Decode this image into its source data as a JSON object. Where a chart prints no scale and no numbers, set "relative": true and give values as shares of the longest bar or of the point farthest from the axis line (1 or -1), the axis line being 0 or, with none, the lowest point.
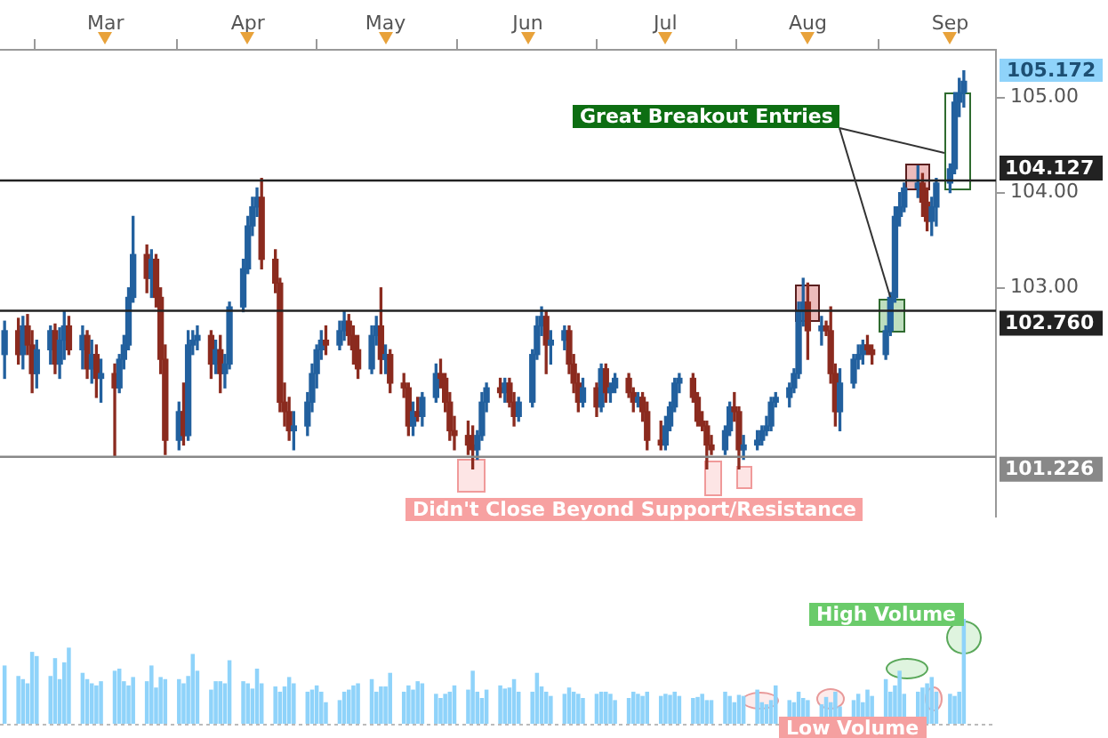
{
  "chart_data": [
    {
      "type": "candlestick",
      "x": [
        "--02-07",
        "--02-10",
        "--02-11",
        "--02-12",
        "--02-13",
        "--02-14",
        "--02-17",
        "--02-18",
        "--02-19",
        "--02-20",
        "--02-21",
        "--02-24",
        "--02-25",
        "--02-26",
        "--02-27",
        "--02-28",
        "--03-03",
        "--03-04",
        "--03-05",
        "--03-06",
        "--03-07",
        "--03-10",
        "--03-11",
        "--03-12",
        "--03-13",
        "--03-14",
        "--03-17",
        "--03-18",
        "--03-19",
        "--03-20",
        "--03-21",
        "--03-24",
        "--03-25",
        "--03-26",
        "--03-27",
        "--03-28",
        "--03-31",
        "--04-01",
        "--04-02",
        "--04-03",
        "--04-04",
        "--04-07",
        "--04-08",
        "--04-09",
        "--04-10",
        "--04-11",
        "--04-14",
        "--04-15",
        "--04-16",
        "--04-17",
        "--04-18",
        "--04-21",
        "--04-22",
        "--04-23",
        "--04-24",
        "--04-25",
        "--04-28",
        "--04-29",
        "--04-30",
        "--05-01",
        "--05-02",
        "--05-05",
        "--05-06",
        "--05-07",
        "--05-08",
        "--05-09",
        "--05-12",
        "--05-13",
        "--05-14",
        "--05-15",
        "--05-16",
        "--05-19",
        "--05-20",
        "--05-21",
        "--05-22",
        "--05-23",
        "--05-26",
        "--05-27",
        "--05-28",
        "--05-29",
        "--05-30",
        "--06-02",
        "--06-03",
        "--06-04",
        "--06-05",
        "--06-06",
        "--06-09",
        "--06-10",
        "--06-11",
        "--06-12",
        "--06-13",
        "--06-16",
        "--06-17",
        "--06-18",
        "--06-19",
        "--06-20",
        "--06-23",
        "--06-24",
        "--06-25",
        "--06-26",
        "--06-27",
        "--06-30",
        "--07-01",
        "--07-02",
        "--07-03",
        "--07-04",
        "--07-07",
        "--07-08",
        "--07-09",
        "--07-10",
        "--07-11",
        "--07-14",
        "--07-15",
        "--07-16",
        "--07-17",
        "--07-18",
        "--07-21",
        "--07-22",
        "--07-23",
        "--07-24",
        "--07-25",
        "--07-28",
        "--07-29",
        "--07-30",
        "--07-31",
        "--08-01",
        "--08-04",
        "--08-05",
        "--08-06",
        "--08-07",
        "--08-08",
        "--08-11",
        "--08-12",
        "--08-13",
        "--08-14",
        "--08-15",
        "--08-18",
        "--08-19",
        "--08-20",
        "--08-21",
        "--08-22",
        "--08-25",
        "--08-26",
        "--08-27",
        "--08-28",
        "--08-29",
        "--09-01",
        "--09-02",
        "--09-03",
        "--09-04"
      ],
      "ohlc": [
        [
          102.3,
          102.65,
          102.05,
          102.55
        ],
        [
          102.55,
          102.68,
          102.2,
          102.3
        ],
        [
          102.3,
          102.7,
          102.15,
          102.6
        ],
        [
          102.6,
          102.72,
          102.3,
          102.4
        ],
        [
          102.4,
          102.55,
          101.9,
          102.1
        ],
        [
          102.1,
          102.45,
          101.95,
          102.35
        ],
        [
          102.35,
          102.6,
          102.2,
          102.55
        ],
        [
          102.55,
          102.62,
          102.1,
          102.2
        ],
        [
          102.2,
          102.58,
          102.05,
          102.45
        ],
        [
          102.45,
          102.75,
          102.25,
          102.6
        ],
        [
          102.6,
          102.7,
          102.3,
          102.35
        ],
        [
          102.35,
          102.6,
          102.15,
          102.5
        ],
        [
          102.5,
          102.55,
          102.05,
          102.15
        ],
        [
          102.15,
          102.45,
          102.0,
          102.3
        ],
        [
          102.3,
          102.4,
          101.85,
          102.05
        ],
        [
          102.05,
          102.25,
          101.8,
          102.1
        ],
        [
          102.1,
          102.2,
          101.22,
          101.95
        ],
        [
          101.95,
          102.3,
          101.9,
          102.25
        ],
        [
          102.25,
          102.5,
          102.15,
          102.4
        ],
        [
          102.4,
          103.0,
          102.35,
          102.9
        ],
        [
          102.9,
          103.75,
          102.85,
          103.35
        ],
        [
          103.35,
          103.45,
          102.95,
          103.1
        ],
        [
          103.1,
          103.4,
          102.9,
          103.3
        ],
        [
          103.3,
          103.35,
          102.8,
          102.9
        ],
        [
          102.9,
          103.0,
          102.1,
          102.25
        ],
        [
          102.25,
          102.4,
          101.25,
          101.4
        ],
        [
          101.4,
          101.8,
          101.3,
          101.7
        ],
        [
          101.7,
          102.0,
          101.35,
          101.45
        ],
        [
          101.45,
          102.55,
          101.4,
          102.4
        ],
        [
          102.4,
          102.55,
          102.3,
          102.45
        ],
        [
          102.45,
          102.6,
          102.35,
          102.5
        ],
        [
          102.5,
          102.55,
          102.05,
          102.2
        ],
        [
          102.2,
          102.45,
          102.1,
          102.35
        ],
        [
          102.35,
          102.5,
          101.9,
          102.1
        ],
        [
          102.1,
          102.3,
          101.95,
          102.2
        ],
        [
          102.2,
          102.85,
          102.15,
          102.8
        ],
        [
          102.8,
          103.3,
          102.75,
          103.2
        ],
        [
          103.2,
          103.75,
          103.15,
          103.65
        ],
        [
          103.65,
          103.95,
          103.55,
          103.85
        ],
        [
          103.85,
          104.05,
          103.75,
          103.95
        ],
        [
          103.95,
          104.15,
          103.2,
          103.3
        ],
        [
          103.3,
          103.4,
          102.95,
          103.05
        ],
        [
          103.05,
          103.1,
          101.7,
          101.8
        ],
        [
          101.8,
          102.0,
          101.55,
          101.7
        ],
        [
          101.7,
          101.85,
          101.4,
          101.5
        ],
        [
          101.5,
          101.7,
          101.3,
          101.55
        ],
        [
          101.55,
          101.9,
          101.45,
          101.8
        ],
        [
          101.8,
          102.2,
          101.7,
          102.1
        ],
        [
          102.1,
          102.4,
          101.95,
          102.35
        ],
        [
          102.35,
          102.55,
          102.25,
          102.45
        ],
        [
          102.45,
          102.6,
          102.3,
          102.4
        ],
        [
          102.4,
          102.65,
          102.35,
          102.55
        ],
        [
          102.55,
          102.75,
          102.45,
          102.65
        ],
        [
          102.65,
          102.72,
          102.4,
          102.5
        ],
        [
          102.5,
          102.6,
          102.2,
          102.35
        ],
        [
          102.35,
          102.5,
          102.05,
          102.15
        ],
        [
          102.15,
          102.6,
          102.1,
          102.5
        ],
        [
          102.5,
          102.7,
          102.4,
          102.6
        ],
        [
          102.6,
          103.0,
          102.1,
          102.25
        ],
        [
          102.25,
          102.4,
          102.1,
          102.3
        ],
        [
          102.3,
          102.35,
          101.9,
          102.0
        ],
        [
          102.0,
          102.1,
          101.85,
          101.95
        ],
        [
          101.95,
          102.0,
          101.45,
          101.55
        ],
        [
          101.55,
          101.8,
          101.45,
          101.7
        ],
        [
          101.7,
          101.85,
          101.6,
          101.65
        ],
        [
          101.65,
          101.9,
          101.55,
          101.85
        ],
        [
          101.85,
          102.2,
          101.8,
          102.1
        ],
        [
          102.1,
          102.25,
          101.95,
          102.05
        ],
        [
          102.05,
          102.1,
          101.7,
          101.8
        ],
        [
          101.8,
          101.9,
          101.4,
          101.5
        ],
        [
          101.5,
          101.65,
          101.3,
          101.45
        ],
        [
          101.45,
          101.6,
          101.25,
          101.35
        ],
        [
          101.35,
          101.55,
          101.1,
          101.3
        ],
        [
          101.3,
          101.5,
          101.2,
          101.45
        ],
        [
          101.45,
          101.9,
          101.4,
          101.8
        ],
        [
          101.8,
          102.0,
          101.7,
          101.95
        ],
        [
          101.95,
          102.05,
          101.85,
          101.9
        ],
        [
          101.9,
          102.05,
          101.8,
          102.0
        ],
        [
          102.0,
          102.05,
          101.75,
          101.8
        ],
        [
          101.8,
          101.9,
          101.55,
          101.65
        ],
        [
          101.65,
          101.85,
          101.6,
          101.8
        ],
        [
          101.8,
          102.35,
          101.75,
          102.3
        ],
        [
          102.3,
          102.7,
          102.25,
          102.6
        ],
        [
          102.6,
          102.8,
          102.5,
          102.7
        ],
        [
          102.7,
          102.75,
          102.1,
          102.4
        ],
        [
          102.4,
          102.55,
          102.2,
          102.45
        ],
        [
          102.45,
          102.6,
          102.35,
          102.55
        ],
        [
          102.55,
          102.6,
          102.1,
          102.2
        ],
        [
          102.2,
          102.3,
          101.9,
          102.0
        ],
        [
          102.0,
          102.1,
          101.7,
          101.8
        ],
        [
          101.8,
          102.05,
          101.75,
          101.95
        ],
        [
          101.95,
          102.0,
          101.65,
          101.75
        ],
        [
          101.75,
          102.2,
          101.7,
          102.15
        ],
        [
          102.15,
          102.2,
          101.8,
          101.9
        ],
        [
          101.9,
          102.0,
          101.8,
          101.95
        ],
        [
          101.95,
          102.1,
          101.9,
          102.05
        ],
        [
          102.05,
          102.1,
          101.85,
          101.9
        ],
        [
          101.9,
          101.95,
          101.7,
          101.8
        ],
        [
          101.8,
          101.9,
          101.75,
          101.85
        ],
        [
          101.85,
          101.9,
          101.6,
          101.7
        ],
        [
          101.7,
          101.8,
          101.3,
          101.4
        ],
        [
          101.4,
          101.6,
          101.3,
          101.35
        ],
        [
          101.35,
          101.65,
          101.3,
          101.55
        ],
        [
          101.55,
          101.8,
          101.5,
          101.75
        ],
        [
          101.75,
          102.05,
          101.7,
          102.0
        ],
        [
          102.0,
          102.1,
          101.9,
          102.05
        ],
        [
          102.05,
          102.1,
          101.8,
          101.85
        ],
        [
          101.85,
          101.9,
          101.55,
          101.6
        ],
        [
          101.6,
          101.7,
          101.5,
          101.55
        ],
        [
          101.55,
          101.6,
          101.1,
          101.35
        ],
        [
          101.35,
          101.45,
          101.25,
          101.3
        ],
        [
          101.3,
          101.55,
          101.25,
          101.5
        ],
        [
          101.5,
          101.8,
          101.45,
          101.75
        ],
        [
          101.75,
          101.9,
          101.6,
          101.7
        ],
        [
          101.7,
          101.75,
          101.1,
          101.3
        ],
        [
          101.3,
          101.45,
          101.2,
          101.35
        ],
        [
          101.35,
          101.5,
          101.3,
          101.4
        ],
        [
          101.4,
          101.55,
          101.35,
          101.5
        ],
        [
          101.5,
          101.65,
          101.45,
          101.55
        ],
        [
          101.55,
          101.85,
          101.5,
          101.8
        ],
        [
          101.8,
          101.9,
          101.75,
          101.85
        ],
        [
          101.85,
          102.0,
          101.75,
          101.95
        ],
        [
          101.95,
          102.15,
          101.9,
          102.1
        ],
        [
          102.1,
          102.85,
          102.05,
          102.75
        ],
        [
          102.75,
          103.1,
          102.6,
          102.85
        ],
        [
          102.85,
          103.05,
          102.25,
          102.55
        ],
        [
          102.55,
          102.7,
          102.4,
          102.6
        ],
        [
          102.6,
          102.65,
          102.5,
          102.55
        ],
        [
          102.55,
          102.8,
          102.0,
          102.1
        ],
        [
          102.1,
          102.2,
          101.55,
          101.7
        ],
        [
          101.7,
          102.15,
          101.5,
          102.0
        ],
        [
          102.0,
          102.3,
          101.95,
          102.25
        ],
        [
          102.25,
          102.4,
          102.15,
          102.3
        ],
        [
          102.3,
          102.45,
          102.2,
          102.4
        ],
        [
          102.4,
          102.5,
          102.3,
          102.35
        ],
        [
          102.35,
          102.4,
          102.2,
          102.3
        ],
        [
          102.3,
          102.6,
          102.25,
          102.55
        ],
        [
          102.55,
          102.95,
          102.5,
          102.9
        ],
        [
          102.9,
          103.85,
          102.85,
          103.75
        ],
        [
          103.75,
          104.0,
          103.65,
          103.85
        ],
        [
          103.85,
          104.1,
          103.8,
          104.05
        ],
        [
          104.05,
          104.28,
          103.95,
          104.1
        ],
        [
          104.1,
          104.2,
          103.75,
          103.9
        ],
        [
          103.9,
          104.05,
          103.6,
          103.7
        ],
        [
          103.7,
          103.95,
          103.55,
          103.85
        ],
        [
          103.85,
          104.15,
          103.65,
          104.1
        ],
        [
          104.1,
          104.3,
          104.0,
          104.25
        ],
        [
          104.25,
          105.05,
          104.2,
          104.95
        ],
        [
          104.95,
          105.2,
          104.8,
          105.05
        ],
        [
          105.05,
          105.28,
          104.9,
          105.17
        ]
      ],
      "colors": [
        "#22609e",
        "#8b2b1f",
        "#22609e",
        "#8b2b1f",
        "#8b2b1f",
        "#22609e",
        "#22609e",
        "#8b2b1f",
        "#22609e",
        "#22609e",
        "#8b2b1f",
        "#22609e",
        "#8b2b1f",
        "#22609e",
        "#8b2b1f",
        "#22609e",
        "#8b2b1f",
        "#22609e",
        "#22609e",
        "#22609e",
        "#22609e",
        "#8b2b1f",
        "#22609e",
        "#8b2b1f",
        "#8b2b1f",
        "#8b2b1f",
        "#22609e",
        "#8b2b1f",
        "#22609e",
        "#22609e",
        "#22609e",
        "#8b2b1f",
        "#22609e",
        "#8b2b1f",
        "#22609e",
        "#22609e",
        "#22609e",
        "#22609e",
        "#22609e",
        "#22609e",
        "#8b2b1f",
        "#8b2b1f",
        "#8b2b1f",
        "#8b2b1f",
        "#8b2b1f",
        "#22609e",
        "#22609e",
        "#22609e",
        "#22609e",
        "#22609e",
        "#8b2b1f",
        "#22609e",
        "#22609e",
        "#8b2b1f",
        "#8b2b1f",
        "#8b2b1f",
        "#22609e",
        "#22609e",
        "#8b2b1f",
        "#22609e",
        "#8b2b1f",
        "#8b2b1f",
        "#8b2b1f",
        "#22609e",
        "#8b2b1f",
        "#22609e",
        "#22609e",
        "#8b2b1f",
        "#8b2b1f",
        "#8b2b1f",
        "#8b2b1f",
        "#8b2b1f",
        "#8b2b1f",
        "#22609e",
        "#22609e",
        "#22609e",
        "#8b2b1f",
        "#22609e",
        "#8b2b1f",
        "#8b2b1f",
        "#22609e",
        "#22609e",
        "#22609e",
        "#22609e",
        "#8b2b1f",
        "#22609e",
        "#22609e",
        "#8b2b1f",
        "#8b2b1f",
        "#8b2b1f",
        "#22609e",
        "#8b2b1f",
        "#22609e",
        "#8b2b1f",
        "#22609e",
        "#22609e",
        "#8b2b1f",
        "#8b2b1f",
        "#22609e",
        "#8b2b1f",
        "#8b2b1f",
        "#8b2b1f",
        "#22609e",
        "#22609e",
        "#22609e",
        "#22609e",
        "#8b2b1f",
        "#8b2b1f",
        "#8b2b1f",
        "#8b2b1f",
        "#8b2b1f",
        "#22609e",
        "#22609e",
        "#8b2b1f",
        "#8b2b1f",
        "#22609e",
        "#22609e",
        "#22609e",
        "#22609e",
        "#22609e",
        "#22609e",
        "#22609e",
        "#22609e",
        "#22609e",
        "#22609e",
        "#8b2b1f",
        "#22609e",
        "#8b2b1f",
        "#8b2b1f",
        "#8b2b1f",
        "#22609e",
        "#22609e",
        "#22609e",
        "#22609e",
        "#8b2b1f",
        "#8b2b1f",
        "#22609e",
        "#22609e",
        "#22609e",
        "#22609e",
        "#22609e",
        "#22609e",
        "#8b2b1f",
        "#8b2b1f",
        "#22609e",
        "#22609e",
        "#22609e",
        "#22609e",
        "#22609e",
        "#22609e"
      ],
      "xlim": [
        "--02-06",
        "--09-11"
      ],
      "xticks": [
        {
          "value": "--03-01",
          "label": "Mar"
        },
        {
          "value": "--04-01",
          "label": "Apr"
        },
        {
          "value": "--05-01",
          "label": "May"
        },
        {
          "value": "--06-01",
          "label": "Jun"
        },
        {
          "value": "--07-01",
          "label": "Jul"
        },
        {
          "value": "--08-01",
          "label": "Aug"
        },
        {
          "value": "--09-01",
          "label": "Sep"
        }
      ],
      "ylim": [
        100.6,
        105.5
      ],
      "yticks": [
        {
          "value": 103,
          "label": "103.00"
        },
        {
          "value": 104,
          "label": "104.00"
        },
        {
          "value": 105,
          "label": "105.00"
        }
      ],
      "ref_lines": [
        {
          "axis": "y",
          "value": 104.127,
          "label": "104.127",
          "color": "#222222"
        },
        {
          "axis": "y",
          "value": 102.76,
          "label": "102.760",
          "color": "#222222"
        },
        {
          "axis": "y",
          "value": 101.226,
          "label": "101.226",
          "color": "#888888"
        }
      ],
      "annotations": [
        {
          "text": "Great Breakout Entries",
          "x": "--08-19",
          "y": 102.9
        },
        "Didn't Close Beyond Support/Resistance",
        "105.172"
      ]
    },
    {
      "type": "bar",
      "relative": true,
      "color": "#8fd3fa",
      "x": [
        "--02-07",
        "--02-10",
        "--02-11",
        "--02-12",
        "--02-13",
        "--02-14",
        "--02-17",
        "--02-18",
        "--02-19",
        "--02-20",
        "--02-21",
        "--02-24",
        "--02-25",
        "--02-26",
        "--02-27",
        "--02-28",
        "--03-03",
        "--03-04",
        "--03-05",
        "--03-06",
        "--03-07",
        "--03-10",
        "--03-11",
        "--03-12",
        "--03-13",
        "--03-14",
        "--03-17",
        "--03-18",
        "--03-19",
        "--03-20",
        "--03-21",
        "--03-24",
        "--03-25",
        "--03-26",
        "--03-27",
        "--03-28",
        "--03-31",
        "--04-01",
        "--04-02",
        "--04-03",
        "--04-04",
        "--04-07",
        "--04-08",
        "--04-09",
        "--04-10",
        "--04-11",
        "--04-14",
        "--04-15",
        "--04-16",
        "--04-17",
        "--04-18",
        "--04-21",
        "--04-22",
        "--04-23",
        "--04-24",
        "--04-25",
        "--04-28",
        "--04-29",
        "--04-30",
        "--05-01",
        "--05-02",
        "--05-05",
        "--05-06",
        "--05-07",
        "--05-08",
        "--05-09",
        "--05-12",
        "--05-13",
        "--05-14",
        "--05-15",
        "--05-16",
        "--05-19",
        "--05-20",
        "--05-21",
        "--05-22",
        "--05-23",
        "--05-26",
        "--05-27",
        "--05-28",
        "--05-29",
        "--05-30",
        "--06-02",
        "--06-03",
        "--06-04",
        "--06-05",
        "--06-06",
        "--06-09",
        "--06-10",
        "--06-11",
        "--06-12",
        "--06-13",
        "--06-16",
        "--06-17",
        "--06-18",
        "--06-19",
        "--06-20",
        "--06-23",
        "--06-24",
        "--06-25",
        "--06-26",
        "--06-27",
        "--06-30",
        "--07-01",
        "--07-02",
        "--07-03",
        "--07-04",
        "--07-07",
        "--07-08",
        "--07-09",
        "--07-10",
        "--07-11",
        "--07-14",
        "--07-15",
        "--07-16",
        "--07-17",
        "--07-18",
        "--07-21",
        "--07-22",
        "--07-23",
        "--07-24",
        "--07-25",
        "--07-28",
        "--07-29",
        "--07-30",
        "--07-31",
        "--08-01",
        "--08-04",
        "--08-05",
        "--08-06",
        "--08-07",
        "--08-08",
        "--08-11",
        "--08-12",
        "--08-13",
        "--08-14",
        "--08-15",
        "--08-18",
        "--08-19",
        "--08-20",
        "--08-21",
        "--08-22",
        "--08-25",
        "--08-26",
        "--08-27",
        "--08-28",
        "--08-29",
        "--09-01",
        "--09-02",
        "--09-03",
        "--09-04"
      ],
      "values": [
        0.55,
        0.45,
        0.42,
        0.38,
        0.68,
        0.64,
        0.45,
        0.62,
        0.42,
        0.58,
        0.72,
        0.48,
        0.42,
        0.38,
        0.36,
        0.4,
        0.5,
        0.52,
        0.4,
        0.36,
        0.44,
        0.4,
        0.55,
        0.34,
        0.44,
        0.42,
        0.42,
        0.38,
        0.45,
        0.66,
        0.5,
        0.32,
        0.4,
        0.4,
        0.38,
        0.6,
        0.4,
        0.38,
        0.33,
        0.52,
        0.38,
        0.35,
        0.3,
        0.35,
        0.44,
        0.38,
        0.3,
        0.32,
        0.36,
        0.3,
        0.2,
        0.22,
        0.3,
        0.32,
        0.36,
        0.38,
        0.42,
        0.3,
        0.35,
        0.35,
        0.48,
        0.3,
        0.36,
        0.32,
        0.4,
        0.38,
        0.28,
        0.24,
        0.28,
        0.3,
        0.36,
        0.32,
        0.5,
        0.3,
        0.24,
        0.32,
        0.36,
        0.33,
        0.34,
        0.42,
        0.3,
        0.3,
        0.48,
        0.35,
        0.3,
        0.26,
        0.28,
        0.34,
        0.3,
        0.28,
        0.24,
        0.28,
        0.3,
        0.3,
        0.28,
        0.22,
        0.24,
        0.3,
        0.28,
        0.26,
        0.3,
        0.26,
        0.28,
        0.27,
        0.3,
        0.26,
        0.24,
        0.25,
        0.28,
        0.22,
        0.22,
        0.3,
        0.26,
        0.2,
        0.27,
        0.26,
        0.32,
        0.2,
        0.18,
        0.22,
        0.36,
        0.22,
        0.2,
        0.3,
        0.24,
        0.22,
        0.18,
        0.25,
        0.2,
        0.3,
        0.16,
        0.22,
        0.28,
        0.2,
        0.32,
        0.26,
        0.42,
        0.3,
        0.36,
        0.5,
        0.28,
        0.3,
        0.34,
        0.38,
        0.44,
        0.3,
        0.28,
        0.26,
        0.3,
        1
      ],
      "xlim": [
        "--02-06",
        "--09-11"
      ],
      "annotations": [
        "High Volume",
        "Low Volume"
      ]
    }
  ]
}
